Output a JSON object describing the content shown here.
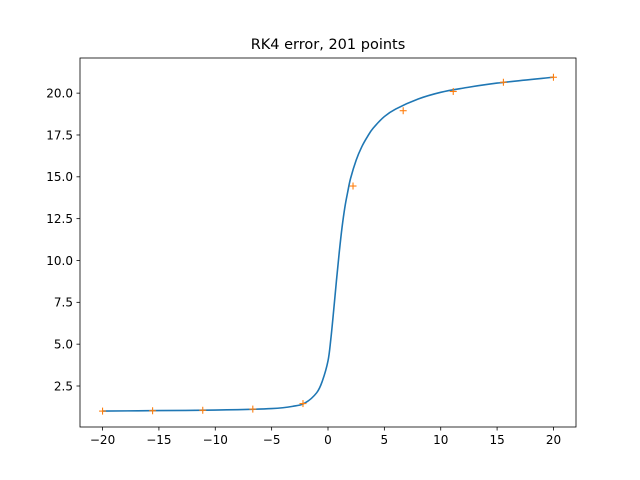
{
  "chart_data": {
    "type": "line",
    "title": "RK4 error, 201 points",
    "xlabel": "",
    "ylabel": "",
    "xlim": [
      -22,
      22
    ],
    "ylim": [
      0.05,
      22.1
    ],
    "xticks": [
      -20,
      -15,
      -10,
      -5,
      0,
      5,
      10,
      15,
      20
    ],
    "xtick_labels": [
      "−20",
      "−15",
      "−10",
      "−5",
      "0",
      "5",
      "10",
      "15",
      "20"
    ],
    "yticks": [
      2.5,
      5.0,
      7.5,
      10.0,
      12.5,
      15.0,
      17.5,
      20.0
    ],
    "ytick_labels": [
      "2.5",
      "5.0",
      "7.5",
      "10.0",
      "12.5",
      "15.0",
      "17.5",
      "20.0"
    ],
    "grid": false,
    "series": [
      {
        "style": "line",
        "color": "#1f77b4",
        "x": [
          -20,
          -15,
          -10,
          -5,
          -3,
          -2,
          -1,
          -0.5,
          0,
          0.25,
          0.5,
          0.75,
          1,
          1.25,
          1.5,
          1.75,
          2,
          2.5,
          3,
          3.5,
          4,
          5,
          6,
          8,
          10,
          12,
          15,
          20
        ],
        "values": [
          1.0,
          1.03,
          1.06,
          1.15,
          1.3,
          1.5,
          2.1,
          2.8,
          4.0,
          5.3,
          7.0,
          8.8,
          10.5,
          12.0,
          13.2,
          14.1,
          14.9,
          16.0,
          16.8,
          17.4,
          17.9,
          18.6,
          19.05,
          19.65,
          20.05,
          20.3,
          20.6,
          20.95
        ]
      },
      {
        "style": "markers",
        "marker": "+",
        "color": "#ff7f0e",
        "x": [
          -20,
          -15.56,
          -11.11,
          -6.67,
          -2.22,
          2.22,
          6.67,
          11.11,
          15.56,
          20
        ],
        "values": [
          1.0,
          1.02,
          1.05,
          1.12,
          1.45,
          14.45,
          18.95,
          20.1,
          20.65,
          20.95
        ]
      }
    ]
  }
}
